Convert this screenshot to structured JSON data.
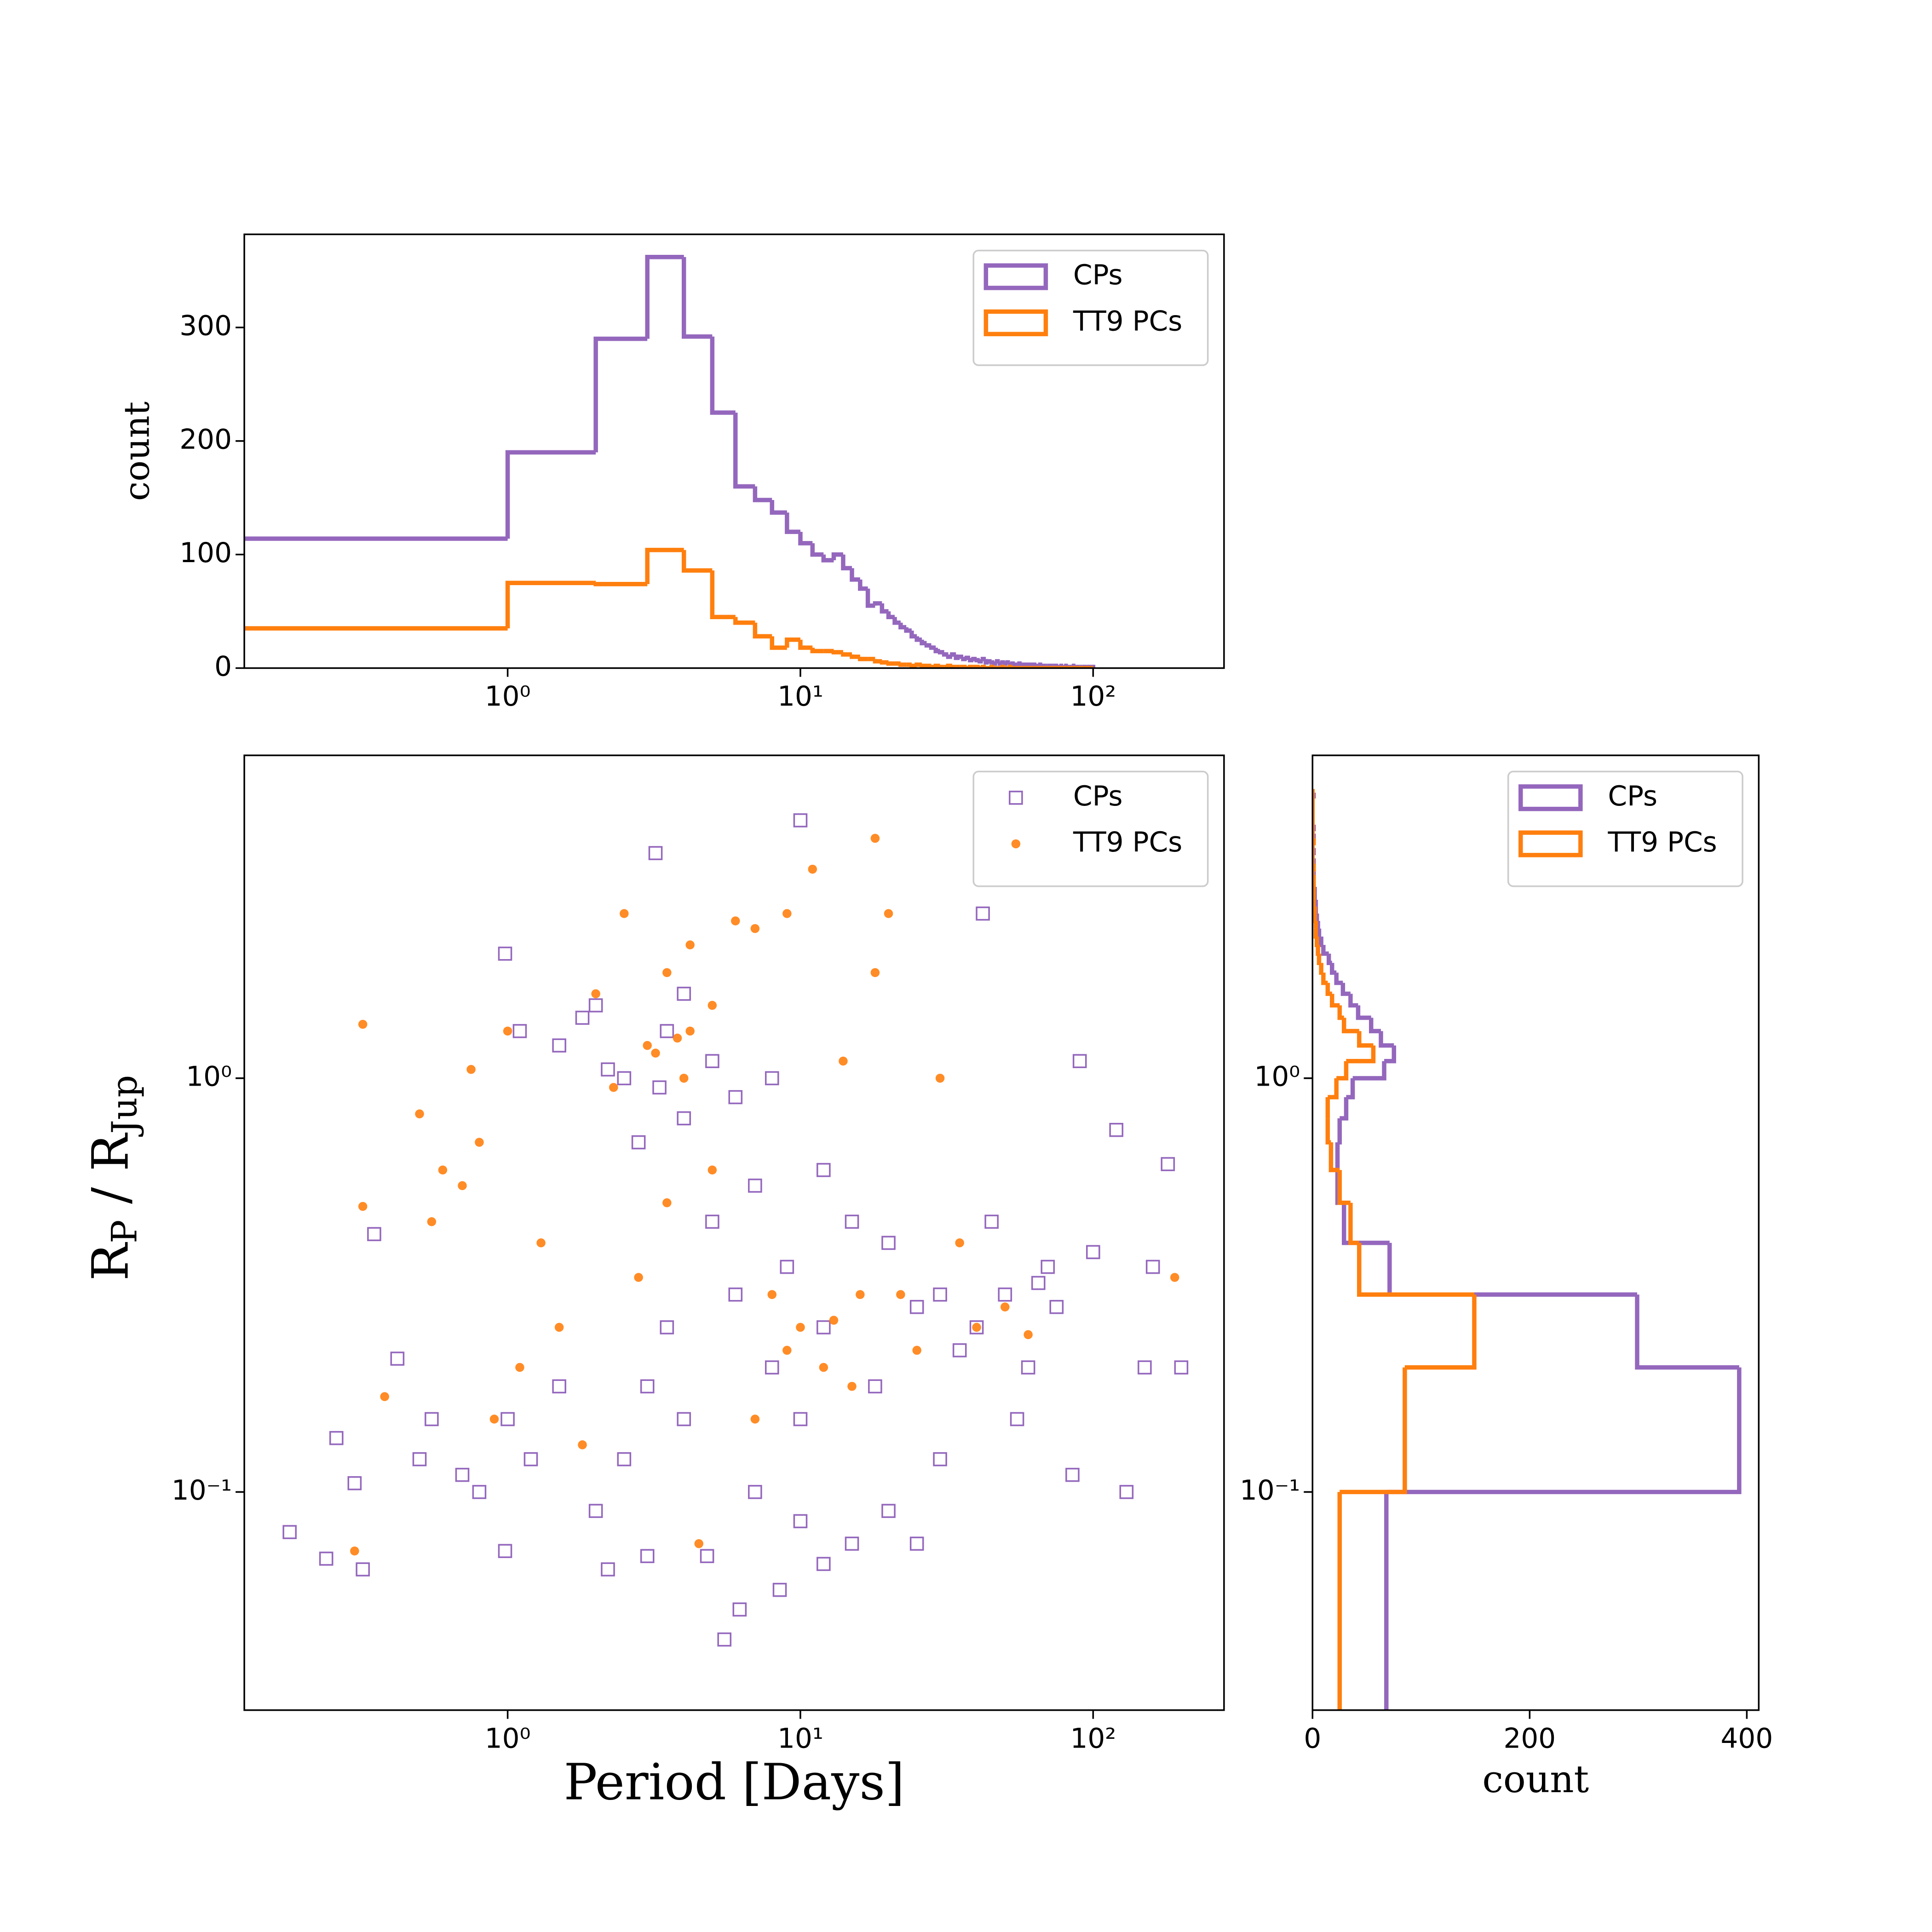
{
  "chart_data": [
    {
      "type": "histogram",
      "orientation": "vertical",
      "ylabel": "count",
      "bins": [
        0,
        1,
        2,
        3,
        4,
        5,
        6,
        7,
        8,
        9,
        10,
        11,
        12,
        13,
        14,
        15,
        16,
        17,
        18,
        19,
        20,
        21,
        22,
        23,
        24,
        25,
        26,
        27,
        28,
        29,
        30,
        31,
        32,
        33,
        34,
        35,
        36,
        37,
        38,
        39,
        40,
        41,
        42,
        43,
        44,
        45,
        46,
        47,
        48,
        49,
        50,
        51,
        52,
        53,
        54,
        55,
        56,
        57,
        58,
        59,
        60,
        61,
        62,
        63,
        64,
        65,
        66,
        67,
        68,
        69,
        70,
        71,
        72,
        73,
        74,
        75,
        76,
        77,
        78,
        79,
        80,
        81,
        82,
        83,
        84,
        85,
        86,
        87,
        88,
        89,
        90,
        91,
        92,
        93,
        94,
        95,
        96,
        97,
        98,
        99,
        100
      ],
      "series": [
        {
          "name": "CPs",
          "color": "#9467bd",
          "values": [
            114,
            190,
            290,
            362,
            292,
            225,
            160,
            148,
            137,
            120,
            110,
            100,
            95,
            100,
            88,
            78,
            70,
            55,
            57,
            50,
            45,
            40,
            36,
            33,
            28,
            25,
            22,
            20,
            18,
            15,
            14,
            12,
            10,
            12,
            9,
            10,
            8,
            9,
            7,
            8,
            7,
            6,
            8,
            5,
            6,
            5,
            4,
            6,
            4,
            5,
            4,
            5,
            3,
            4,
            3,
            3,
            4,
            2,
            3,
            3,
            2,
            3,
            2,
            3,
            2,
            2,
            3,
            1,
            2,
            2,
            2,
            1,
            2,
            2,
            1,
            2,
            1,
            1,
            2,
            1,
            1,
            2,
            1,
            1,
            1,
            1,
            2,
            1,
            1,
            1,
            1,
            1,
            1,
            0,
            1,
            1,
            1,
            0,
            1,
            1
          ]
        },
        {
          "name": "TT9 PCs",
          "color": "#ff7f0e",
          "values": [
            35,
            75,
            74,
            104,
            86,
            45,
            40,
            28,
            18,
            25,
            18,
            15,
            15,
            14,
            12,
            10,
            8,
            8,
            6,
            5,
            4,
            4,
            3,
            3,
            2,
            3,
            2,
            2,
            1,
            2,
            1,
            1,
            2,
            1,
            1,
            1,
            1,
            0,
            1,
            1,
            1,
            0,
            1,
            0,
            0,
            1,
            0,
            0,
            0,
            1,
            0,
            0,
            1,
            0,
            0,
            0,
            0,
            0,
            0,
            0,
            0,
            0,
            0,
            0,
            0,
            0,
            0,
            0,
            0,
            0,
            0,
            0,
            0,
            0,
            0,
            0,
            0,
            0,
            0,
            0,
            0,
            0,
            0,
            0,
            0,
            0,
            0,
            0,
            0,
            0,
            0,
            0,
            0,
            0,
            0,
            0,
            0,
            0,
            0,
            0
          ]
        }
      ],
      "xscale": "log",
      "xlim": [
        0.126,
        280
      ],
      "xticks": [
        {
          "value": 1,
          "label": "10⁰"
        },
        {
          "value": 10,
          "label": "10¹"
        },
        {
          "value": 100,
          "label": "10²"
        }
      ],
      "ylim": [
        0,
        382
      ],
      "yticks": [
        0,
        100,
        200,
        300
      ],
      "legend": "upper right"
    },
    {
      "type": "scatter",
      "xlabel": "Period [Days]",
      "ylabel": [
        "R",
        "P",
        " / R",
        "Jup"
      ],
      "series": [
        {
          "name": "CPs",
          "color": "#9467bd",
          "marker": "square",
          "x": [
            0.18,
            0.24,
            0.32,
            0.26,
            0.3,
            0.35,
            0.42,
            0.5,
            0.55,
            0.7,
            0.8,
            0.98,
            1.0,
            1.2,
            1.5,
            2.0,
            2.2,
            3.0,
            3.5,
            3.2,
            4.0,
            4.8,
            5.5,
            6.2,
            7.0,
            8.5,
            10,
            12,
            15,
            20,
            25,
            30,
            40,
            42,
            50,
            60,
            70,
            85,
            90,
            100,
            130,
            150,
            180,
            200,
            160,
            120,
            0.98,
            1.5,
            2.0,
            2.5,
            3.5,
            4.0,
            5.0,
            6,
            8,
            10,
            12,
            15,
            20,
            25,
            30,
            35,
            6,
            8,
            10,
            3,
            2.5,
            12,
            18,
            9,
            5,
            7,
            4,
            2.8,
            3.3,
            1.8,
            2.2,
            1.1,
            45,
            55,
            65,
            75
          ],
          "values": [
            0.08,
            0.069,
            0.065,
            0.135,
            0.105,
            0.42,
            0.21,
            0.12,
            0.15,
            0.11,
            0.1,
            0.072,
            0.15,
            0.12,
            0.18,
            0.09,
            0.065,
            0.07,
            0.25,
            3.5,
            0.15,
            0.07,
            0.044,
            0.052,
            0.1,
            0.058,
            0.085,
            0.067,
            0.075,
            0.09,
            0.075,
            0.12,
            0.25,
            2.5,
            0.3,
            0.2,
            0.35,
            0.11,
            1.1,
            0.38,
            0.1,
            0.2,
            0.62,
            0.2,
            0.35,
            0.75,
            2.0,
            1.2,
            1.5,
            1.0,
            1.3,
            1.6,
            1.1,
            0.9,
            1.0,
            4.2,
            0.6,
            0.45,
            0.4,
            0.28,
            0.3,
            0.22,
            0.3,
            0.2,
            0.15,
            0.18,
            0.12,
            0.25,
            0.18,
            0.35,
            0.45,
            0.55,
            0.8,
            0.7,
            0.95,
            1.4,
            1.05,
            1.3,
            0.45,
            0.15,
            0.32,
            0.28
          ]
        },
        {
          "name": "TT9 PCs",
          "color": "#ff7f0e",
          "marker": "circle",
          "x": [
            0.3,
            0.32,
            0.38,
            0.32,
            0.5,
            0.55,
            0.6,
            0.7,
            0.75,
            0.8,
            0.9,
            1.0,
            1.1,
            1.3,
            1.5,
            1.8,
            2.0,
            2.5,
            3.0,
            3.5,
            4.0,
            4.2,
            4.5,
            5,
            6,
            7,
            8,
            9,
            10,
            11,
            12,
            14,
            15,
            18,
            18,
            20,
            22,
            25,
            30,
            35,
            40,
            50,
            60,
            190,
            2.8,
            3.5,
            5,
            7,
            3.2,
            3.8,
            4.2,
            2.3,
            13,
            16,
            9
          ],
          "values": [
            0.072,
            0.49,
            0.17,
            1.35,
            0.82,
            0.45,
            0.6,
            0.55,
            1.05,
            0.7,
            0.15,
            1.3,
            0.2,
            0.4,
            0.25,
            0.13,
            1.6,
            2.5,
            1.2,
            1.8,
            1.0,
            2.1,
            0.075,
            1.5,
            2.4,
            2.3,
            0.3,
            2.5,
            0.25,
            3.2,
            0.2,
            1.1,
            0.18,
            3.8,
            1.8,
            2.5,
            0.3,
            0.22,
            1.0,
            0.4,
            0.25,
            0.28,
            0.24,
            0.33,
            0.33,
            0.5,
            0.6,
            0.15,
            1.15,
            1.25,
            1.3,
            0.95,
            0.26,
            0.3,
            0.22
          ]
        }
      ],
      "xscale": "log",
      "xlim": [
        0.126,
        280
      ],
      "xticks": [
        {
          "value": 1,
          "label": "10⁰"
        },
        {
          "value": 10,
          "label": "10¹"
        },
        {
          "value": 100,
          "label": "10²"
        }
      ],
      "yscale": "log",
      "ylim": [
        0.0297,
        6.03
      ],
      "yticks": [
        {
          "value": 0.1,
          "label": "10⁻¹"
        },
        {
          "value": 1,
          "label": "10⁰"
        }
      ],
      "legend": "upper right"
    },
    {
      "type": "histogram",
      "orientation": "horizontal",
      "xlabel": "count",
      "bins": [
        0,
        0.1,
        0.2,
        0.3,
        0.4,
        0.5,
        0.6,
        0.7,
        0.8,
        0.9,
        1.0,
        1.1,
        1.2,
        1.3,
        1.4,
        1.5,
        1.6,
        1.7,
        1.8,
        1.9,
        2.0,
        2.1,
        2.2,
        2.3,
        2.4,
        2.5,
        2.6,
        2.7,
        2.8,
        2.9,
        3.0,
        3.1,
        3.2,
        3.3,
        3.4,
        3.5,
        3.6,
        3.7,
        3.8,
        3.9,
        4.0,
        4.1,
        4.2,
        4.3,
        4.4,
        4.5,
        4.6,
        4.7,
        4.8,
        4.9,
        5.0
      ],
      "series": [
        {
          "name": "CPs",
          "color": "#9467bd",
          "values": [
            68,
            393,
            299,
            71,
            29,
            23,
            23,
            25,
            31,
            37,
            66,
            75,
            63,
            54,
            42,
            35,
            28,
            22,
            18,
            15,
            10,
            8,
            6,
            5,
            4,
            3,
            3,
            2,
            2,
            1,
            1,
            1,
            1,
            1,
            0,
            1,
            0,
            0,
            1,
            0,
            1,
            0,
            0,
            0,
            0,
            0,
            0,
            0,
            1,
            0
          ]
        },
        {
          "name": "TT9 PCs",
          "color": "#ff7f0e",
          "values": [
            25,
            85,
            149,
            43,
            35,
            25,
            17,
            14,
            14,
            22,
            31,
            56,
            43,
            29,
            25,
            18,
            14,
            10,
            8,
            6,
            5,
            4,
            3,
            3,
            2,
            2,
            1,
            1,
            1,
            1,
            1,
            0,
            1,
            0,
            0,
            0,
            0,
            1,
            0,
            0,
            0,
            0,
            0,
            0,
            0,
            0,
            0,
            0,
            0,
            0
          ]
        }
      ],
      "xlim": [
        0,
        411
      ],
      "xticks": [
        0,
        200,
        400
      ],
      "yscale": "log",
      "ylim": [
        0.0297,
        6.03
      ],
      "yticks": [
        {
          "value": 0.1,
          "label": "10⁻¹"
        },
        {
          "value": 1,
          "label": "10⁰"
        }
      ],
      "legend": "upper right"
    }
  ]
}
